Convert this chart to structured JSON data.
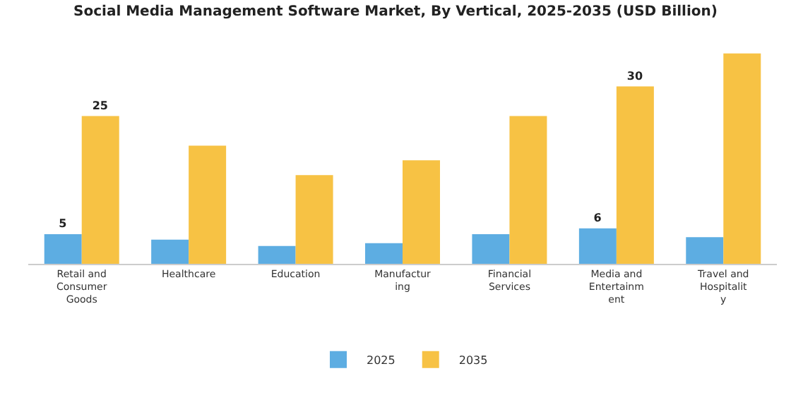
{
  "chart_data": {
    "type": "bar",
    "title": "Social Media Management Software Market, By Vertical, 2025-2035 (USD Billion)",
    "categories": [
      "Retail and Consumer Goods",
      "Healthcare",
      "Education",
      "Manufacturing",
      "Financial Services",
      "Media and Entertainment",
      "Travel and Hospitality"
    ],
    "series": [
      {
        "name": "2025",
        "color": "#5dade2",
        "values": [
          5,
          4.1,
          3,
          3.5,
          5,
          6,
          4.5
        ],
        "value_labels": [
          "5",
          null,
          null,
          null,
          null,
          "6",
          null
        ]
      },
      {
        "name": "2035",
        "color": "#f7c244",
        "values": [
          25,
          20,
          15,
          17.5,
          25,
          30,
          35.6
        ],
        "value_labels": [
          "25",
          null,
          null,
          null,
          null,
          "30",
          null
        ]
      }
    ],
    "legend": "bottom",
    "grid": false
  }
}
